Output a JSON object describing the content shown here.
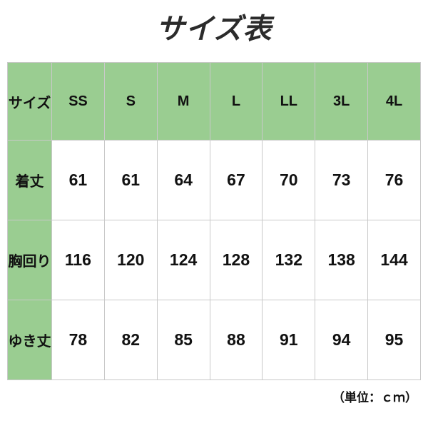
{
  "title": "サイズ表",
  "unit_note": "（単位：ｃｍ）",
  "colors": {
    "header_green": "#9acd91",
    "border_gray": "#c9c9c9",
    "text": "#111111"
  },
  "table": {
    "header": [
      "サイズ",
      "SS",
      "S",
      "M",
      "L",
      "LL",
      "3L",
      "4L"
    ],
    "rows": [
      {
        "label": "着丈",
        "values": [
          "61",
          "61",
          "64",
          "67",
          "70",
          "73",
          "76"
        ]
      },
      {
        "label": "胸回り",
        "values": [
          "116",
          "120",
          "124",
          "128",
          "132",
          "138",
          "144"
        ]
      },
      {
        "label": "ゆき丈",
        "values": [
          "78",
          "82",
          "85",
          "88",
          "91",
          "94",
          "95"
        ]
      }
    ]
  }
}
